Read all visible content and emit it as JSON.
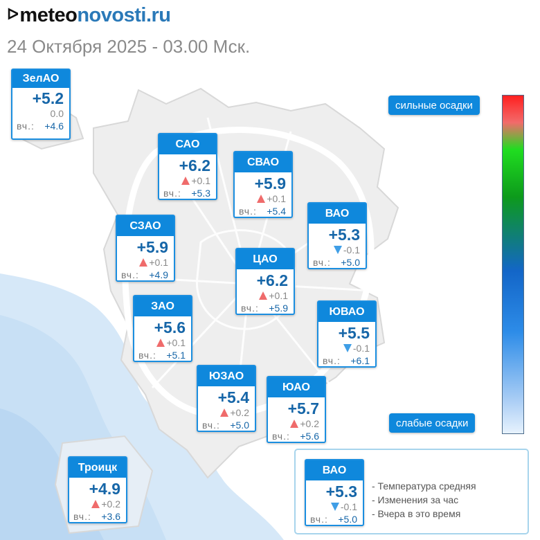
{
  "header": {
    "brand_symbol": "ᐅ",
    "brand_part1": "meteo",
    "brand_part2": "novosti.ru",
    "datetime": "24 Октября 2025 - 03.00 Мск."
  },
  "colors": {
    "card_header": "#0f88dc",
    "temp_text": "#1666a8",
    "rise_arrow": "#ef6b6b",
    "fall_arrow": "#3f9ee6",
    "water": "#cfe5f7"
  },
  "districts": {
    "zelao": {
      "name": "ЗелАО",
      "temp": "+5.2",
      "change": "0.0",
      "trend": "none",
      "yesterday_label": "вч.:",
      "yesterday": "+4.6"
    },
    "sao": {
      "name": "САО",
      "temp": "+6.2",
      "change": "+0.1",
      "trend": "up",
      "yesterday_label": "вч.:",
      "yesterday": "+5.3"
    },
    "svao": {
      "name": "СВАО",
      "temp": "+5.9",
      "change": "+0.1",
      "trend": "up",
      "yesterday_label": "вч.:",
      "yesterday": "+5.4"
    },
    "vao": {
      "name": "ВАО",
      "temp": "+5.3",
      "change": "-0.1",
      "trend": "down",
      "yesterday_label": "вч.:",
      "yesterday": "+5.0"
    },
    "szao": {
      "name": "СЗАО",
      "temp": "+5.9",
      "change": "+0.1",
      "trend": "up",
      "yesterday_label": "вч.:",
      "yesterday": "+4.9"
    },
    "cao": {
      "name": "ЦАО",
      "temp": "+6.2",
      "change": "+0.1",
      "trend": "up",
      "yesterday_label": "вч.:",
      "yesterday": "+5.9"
    },
    "zao": {
      "name": "ЗАО",
      "temp": "+5.6",
      "change": "+0.1",
      "trend": "up",
      "yesterday_label": "вч.:",
      "yesterday": "+5.1"
    },
    "yuvao": {
      "name": "ЮВАО",
      "temp": "+5.5",
      "change": "-0.1",
      "trend": "down",
      "yesterday_label": "вч.:",
      "yesterday": "+6.1"
    },
    "yuzao": {
      "name": "ЮЗАО",
      "temp": "+5.4",
      "change": "+0.2",
      "trend": "up",
      "yesterday_label": "вч.:",
      "yesterday": "+5.0"
    },
    "yuao": {
      "name": "ЮАО",
      "temp": "+5.7",
      "change": "+0.2",
      "trend": "up",
      "yesterday_label": "вч.:",
      "yesterday": "+5.6"
    },
    "troitsk": {
      "name": "Троицк",
      "temp": "+4.9",
      "change": "+0.2",
      "trend": "up",
      "yesterday_label": "вч.:",
      "yesterday": "+3.6"
    }
  },
  "precip_scale": {
    "top_label": "сильные осадки",
    "bottom_label": "слабые осадки"
  },
  "legend": {
    "sample": {
      "name": "ВАО",
      "temp": "+5.3",
      "change": "-0.1",
      "trend": "down",
      "yesterday_label": "вч.:",
      "yesterday": "+5.0"
    },
    "desc_temp": "- Температура средняя",
    "desc_change": "- Изменения за час",
    "desc_yesterday": "- Вчера в это время"
  }
}
